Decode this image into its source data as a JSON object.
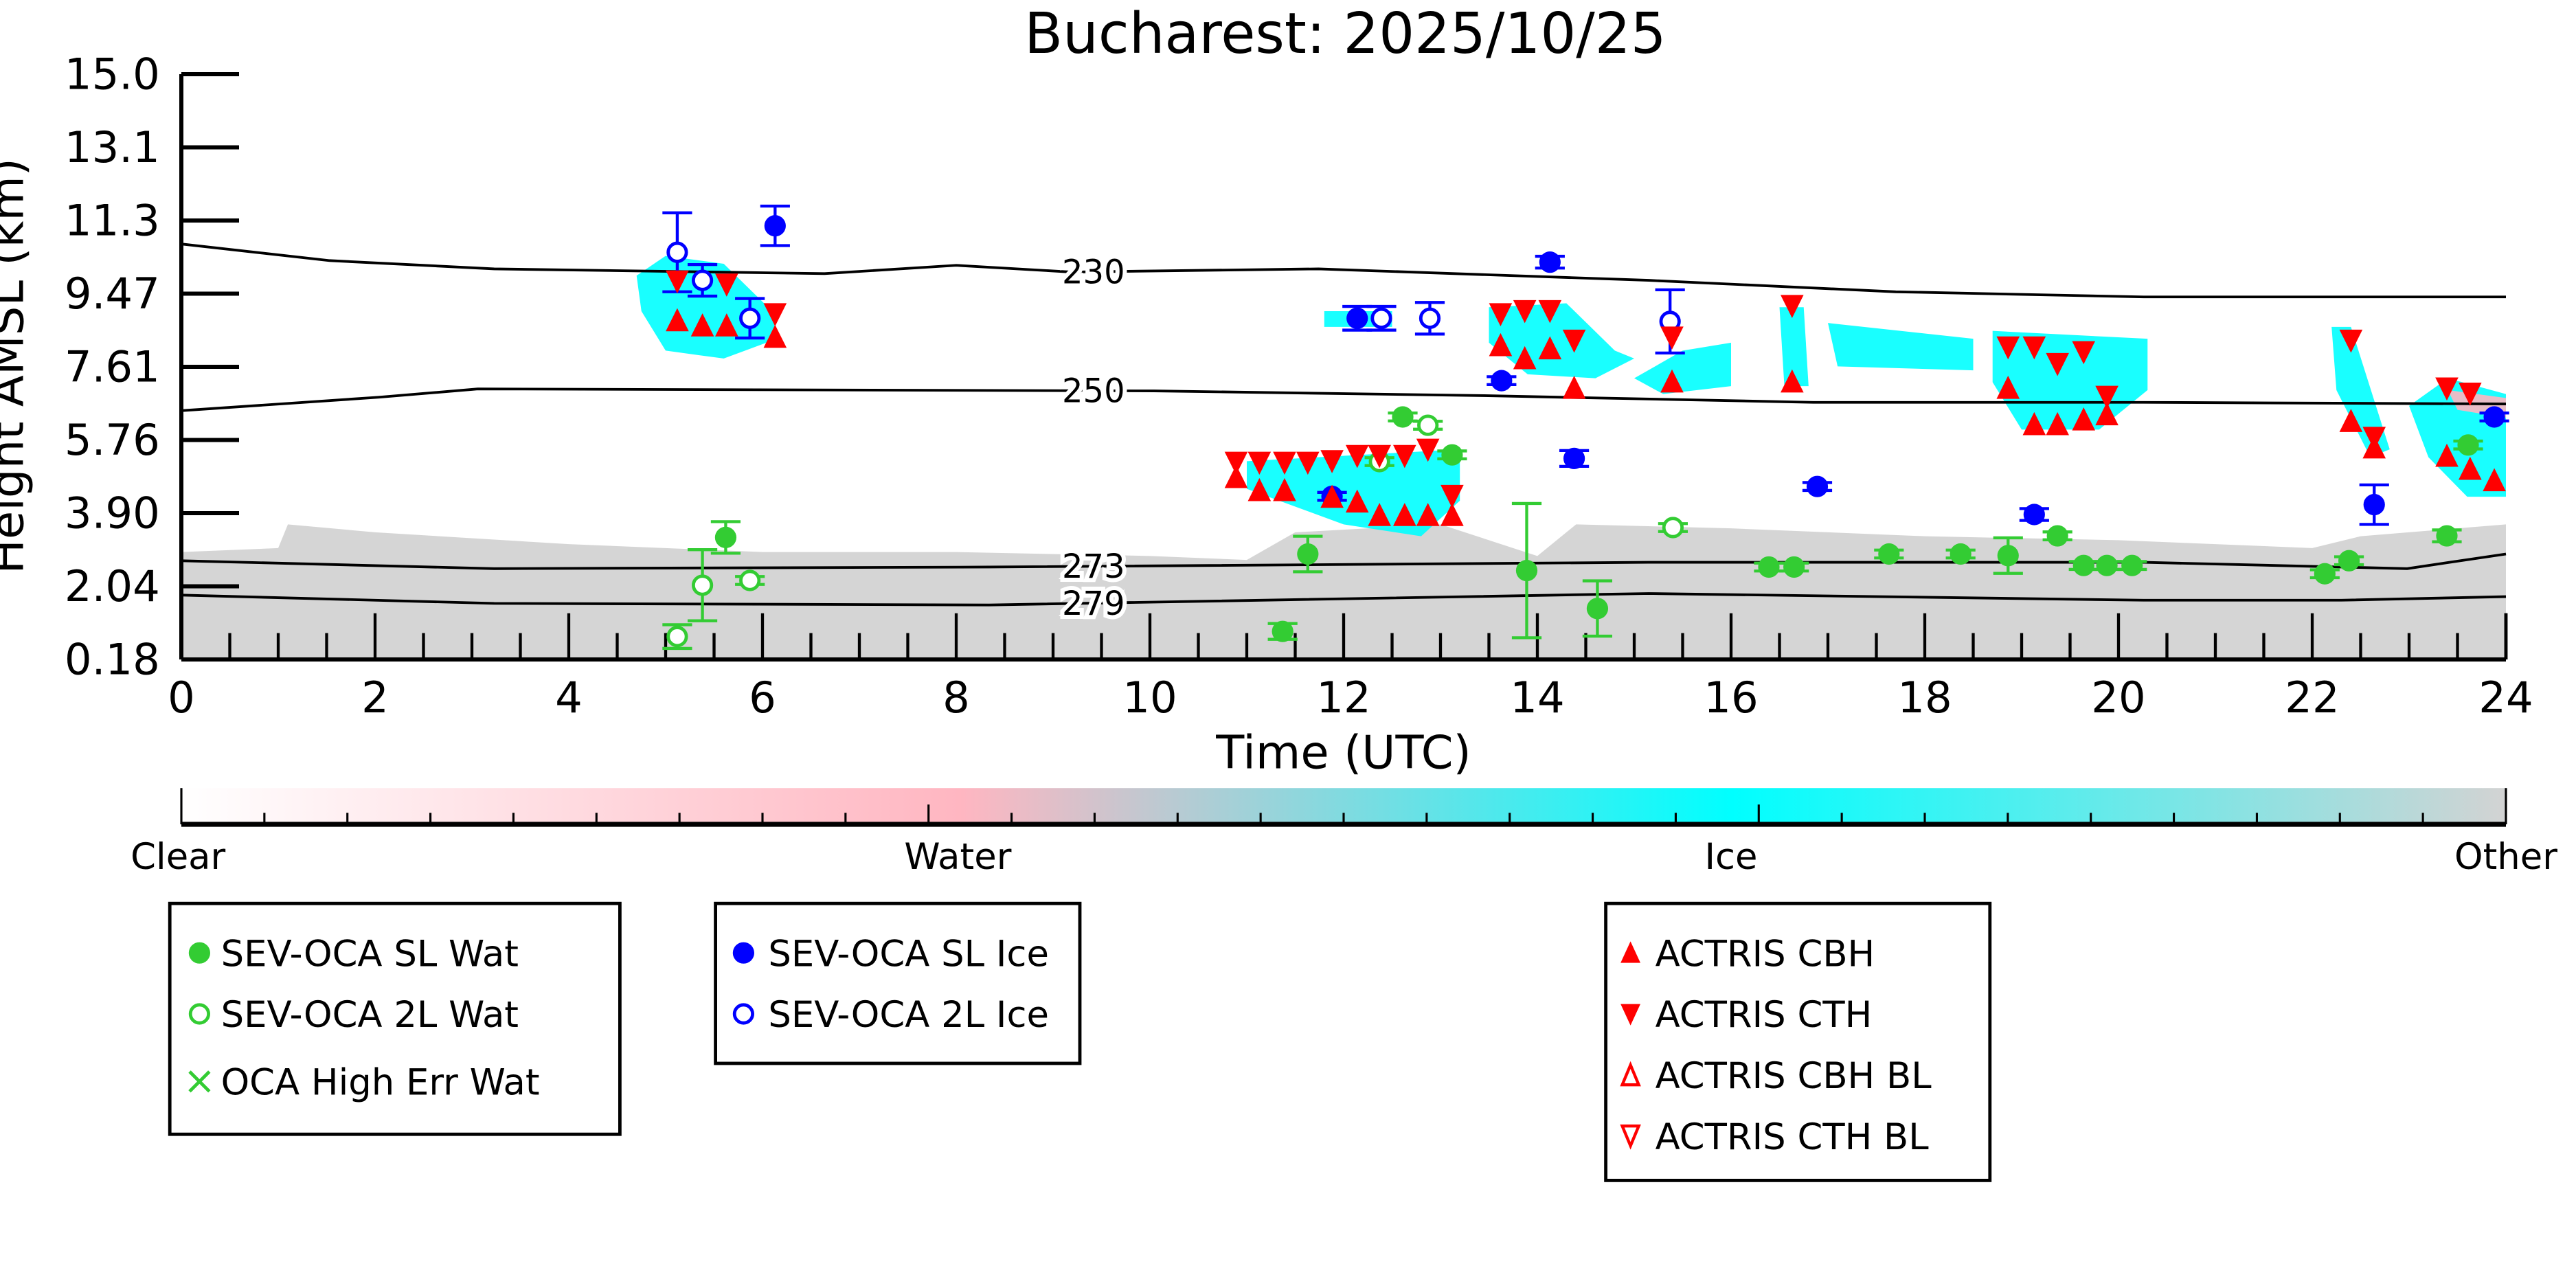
{
  "chart_data": {
    "type": "scatter",
    "title": "Bucharest: 2025/10/25",
    "xlabel": "Time (UTC)",
    "ylabel": "Height AMSL (km)",
    "xlim": [
      0,
      24
    ],
    "ylim": [
      0.18,
      15.0
    ],
    "x_ticks": [
      "0",
      "2",
      "4",
      "6",
      "8",
      "10",
      "12",
      "14",
      "16",
      "18",
      "20",
      "22",
      "24"
    ],
    "y_ticks": [
      "0.18",
      "2.04",
      "3.90",
      "5.76",
      "7.61",
      "9.47",
      "11.3",
      "13.1",
      "15.0"
    ],
    "grid": false,
    "colorbar": {
      "labels": [
        "Clear",
        "Water",
        "Ice",
        "Other"
      ],
      "colors": {
        "clear": "#ffffff",
        "water": "#ffb6c1",
        "ice": "#00ffff",
        "other": "#d3d3d3"
      }
    },
    "temperature_contours": [
      {
        "label": "230",
        "label_x": 9.4,
        "points": [
          [
            0,
            10.7
          ],
          [
            1.53,
            10.28
          ],
          [
            3.23,
            10.07
          ],
          [
            6.64,
            9.95
          ],
          [
            8,
            10.16
          ],
          [
            9.19,
            9.99
          ],
          [
            11.74,
            10.07
          ],
          [
            15.15,
            9.78
          ],
          [
            17.7,
            9.49
          ],
          [
            20.26,
            9.36
          ],
          [
            24,
            9.36
          ]
        ]
      },
      {
        "label": "250",
        "label_x": 9.4,
        "points": [
          [
            0,
            6.48
          ],
          [
            2.04,
            6.82
          ],
          [
            3.06,
            7.03
          ],
          [
            10.04,
            6.98
          ],
          [
            13.45,
            6.86
          ],
          [
            16.85,
            6.69
          ],
          [
            20.26,
            6.69
          ],
          [
            24,
            6.65
          ]
        ]
      },
      {
        "label": "273",
        "label_x": 9.4,
        "points": [
          [
            0,
            2.68
          ],
          [
            3.23,
            2.48
          ],
          [
            8.34,
            2.52
          ],
          [
            15.15,
            2.64
          ],
          [
            20.26,
            2.64
          ],
          [
            22.98,
            2.48
          ],
          [
            24,
            2.85
          ]
        ]
      },
      {
        "label": "279",
        "label_x": 9.4,
        "points": [
          [
            0,
            1.81
          ],
          [
            3.23,
            1.6
          ],
          [
            8.34,
            1.56
          ],
          [
            15.15,
            1.85
          ],
          [
            20.26,
            1.68
          ],
          [
            22.3,
            1.68
          ],
          [
            24,
            1.77
          ]
        ]
      }
    ],
    "cloud_regions": [
      {
        "class": "other",
        "points": [
          [
            0,
            0.18
          ],
          [
            0,
            2.9
          ],
          [
            1,
            3.0
          ],
          [
            1.1,
            3.6
          ],
          [
            2,
            3.4
          ],
          [
            4,
            3.1
          ],
          [
            6,
            2.9
          ],
          [
            8,
            2.9
          ],
          [
            10,
            2.8
          ],
          [
            11,
            2.7
          ],
          [
            11.5,
            3.4
          ],
          [
            13,
            3.6
          ],
          [
            14,
            2.8
          ],
          [
            14.4,
            3.6
          ],
          [
            16,
            3.5
          ],
          [
            18,
            3.3
          ],
          [
            20,
            3.2
          ],
          [
            22,
            3.0
          ],
          [
            22.5,
            3.3
          ],
          [
            24,
            3.6
          ],
          [
            24,
            0.18
          ]
        ]
      },
      {
        "class": "ice",
        "points": [
          [
            4.7,
            9.9
          ],
          [
            5.0,
            10.4
          ],
          [
            5.6,
            10.2
          ],
          [
            6.1,
            9.0
          ],
          [
            6.15,
            8.3
          ],
          [
            5.6,
            7.8
          ],
          [
            5.0,
            8.0
          ],
          [
            4.75,
            9.0
          ]
        ]
      },
      {
        "class": "ice",
        "points": [
          [
            11.0,
            5.2
          ],
          [
            13.2,
            5.5
          ],
          [
            13.2,
            4.2
          ],
          [
            12.8,
            3.3
          ],
          [
            12.0,
            3.6
          ],
          [
            11.0,
            4.5
          ]
        ]
      },
      {
        "class": "ice",
        "points": [
          [
            11.8,
            9.0
          ],
          [
            12.5,
            9.0
          ],
          [
            12.5,
            8.6
          ],
          [
            11.8,
            8.6
          ]
        ]
      },
      {
        "class": "ice",
        "points": [
          [
            13.5,
            9.1
          ],
          [
            14.3,
            9.2
          ],
          [
            14.8,
            8.0
          ],
          [
            15.0,
            7.8
          ],
          [
            14.6,
            7.3
          ],
          [
            13.9,
            7.4
          ],
          [
            13.5,
            8.2
          ]
        ]
      },
      {
        "class": "ice",
        "points": [
          [
            15.5,
            8.0
          ],
          [
            16.0,
            8.2
          ],
          [
            16.0,
            7.1
          ],
          [
            15.3,
            6.9
          ],
          [
            15.0,
            7.3
          ]
        ]
      },
      {
        "class": "ice",
        "points": [
          [
            16.5,
            9.1
          ],
          [
            16.75,
            9.1
          ],
          [
            16.8,
            7.1
          ],
          [
            16.55,
            7.1
          ]
        ]
      },
      {
        "class": "ice",
        "points": [
          [
            17.0,
            8.7
          ],
          [
            18.5,
            8.3
          ],
          [
            18.5,
            7.5
          ],
          [
            17.1,
            7.6
          ]
        ]
      },
      {
        "class": "ice",
        "points": [
          [
            18.7,
            8.5
          ],
          [
            20.3,
            8.3
          ],
          [
            20.3,
            7.0
          ],
          [
            19.8,
            6.0
          ],
          [
            19.0,
            6.0
          ],
          [
            18.7,
            7.2
          ]
        ]
      },
      {
        "class": "ice",
        "points": [
          [
            22.2,
            8.6
          ],
          [
            22.4,
            8.6
          ],
          [
            22.8,
            5.5
          ],
          [
            22.6,
            5.3
          ],
          [
            22.25,
            7.0
          ]
        ]
      },
      {
        "class": "ice",
        "points": [
          [
            23.0,
            6.6
          ],
          [
            23.4,
            7.3
          ],
          [
            24,
            6.9
          ],
          [
            24,
            4.3
          ],
          [
            23.6,
            4.3
          ],
          [
            23.2,
            5.3
          ]
        ]
      },
      {
        "class": "water",
        "points": [
          [
            23.4,
            7.0
          ],
          [
            24,
            6.8
          ],
          [
            24,
            6.3
          ],
          [
            23.5,
            6.5
          ]
        ]
      }
    ],
    "series": [
      {
        "name": "SEV-OCA SL Wat",
        "marker": "filled-circle",
        "color": "#33cc33",
        "points": [
          [
            5.62,
            3.27,
            0.4
          ],
          [
            11.63,
            2.85,
            0.45
          ],
          [
            11.37,
            0.89,
            0.2
          ],
          [
            12.61,
            6.32,
            0.1
          ],
          [
            13.12,
            5.36,
            0.1
          ],
          [
            13.89,
            2.43,
            1.7
          ],
          [
            14.62,
            1.47,
            0.7
          ],
          [
            16.39,
            2.52,
            0.1
          ],
          [
            16.65,
            2.52,
            0.1
          ],
          [
            17.63,
            2.85,
            0.1
          ],
          [
            18.37,
            2.85,
            0.1
          ],
          [
            18.86,
            2.81,
            0.45
          ],
          [
            19.37,
            3.31,
            0.1
          ],
          [
            19.64,
            2.56,
            0.1
          ],
          [
            19.88,
            2.56,
            0.1
          ],
          [
            20.14,
            2.56,
            0.1
          ],
          [
            22.13,
            2.35,
            0.1
          ],
          [
            22.38,
            2.68,
            0.1
          ],
          [
            23.39,
            3.31,
            0.15
          ],
          [
            23.61,
            5.61,
            0.1
          ]
        ]
      },
      {
        "name": "SEV-OCA 2L Wat",
        "marker": "open-circle",
        "color": "#33cc33",
        "points": [
          [
            5.12,
            0.76,
            0.3
          ],
          [
            5.38,
            2.06,
            0.9
          ],
          [
            5.87,
            2.18,
            0.1
          ],
          [
            12.37,
            5.19,
            0.1
          ],
          [
            12.87,
            6.11,
            0.1
          ],
          [
            15.4,
            3.52,
            0.1
          ]
        ]
      },
      {
        "name": "OCA High Err Wat",
        "marker": "x",
        "color": "#33cc33",
        "points": []
      },
      {
        "name": "SEV-OCA SL Ice",
        "marker": "filled-circle",
        "color": "#0000ff",
        "points": [
          [
            6.13,
            11.16,
            0.5
          ],
          [
            12.14,
            8.82,
            0.3
          ],
          [
            11.88,
            4.31,
            0.1
          ],
          [
            14.13,
            10.24,
            0.15
          ],
          [
            13.63,
            7.24,
            0.1
          ],
          [
            14.38,
            5.27,
            0.2
          ],
          [
            16.89,
            4.56,
            0.1
          ],
          [
            19.13,
            3.85,
            0.15
          ],
          [
            22.64,
            4.1,
            0.5
          ],
          [
            23.88,
            6.32,
            0.1
          ]
        ]
      },
      {
        "name": "SEV-OCA 2L Ice",
        "marker": "open-circle",
        "color": "#0000ff",
        "points": [
          [
            5.12,
            10.49,
            1.0
          ],
          [
            5.38,
            9.78,
            0.4
          ],
          [
            5.87,
            8.82,
            0.5
          ],
          [
            12.39,
            8.82,
            0.3
          ],
          [
            12.89,
            8.82,
            0.4
          ],
          [
            15.37,
            8.74,
            0.8
          ]
        ]
      },
      {
        "name": "ACTRIS CBH",
        "marker": "triangle-up",
        "color": "#ff0000",
        "points": [
          [
            5.12,
            8.74
          ],
          [
            5.38,
            8.61
          ],
          [
            5.63,
            8.61
          ],
          [
            6.13,
            8.32
          ],
          [
            10.89,
            4.77
          ],
          [
            11.13,
            4.44
          ],
          [
            11.39,
            4.44
          ],
          [
            11.88,
            4.27
          ],
          [
            12.14,
            4.15
          ],
          [
            12.37,
            3.81
          ],
          [
            12.63,
            3.81
          ],
          [
            12.87,
            3.81
          ],
          [
            13.12,
            3.81
          ],
          [
            13.62,
            8.11
          ],
          [
            13.87,
            7.78
          ],
          [
            14.13,
            8.03
          ],
          [
            14.38,
            7.03
          ],
          [
            15.39,
            7.19
          ],
          [
            16.63,
            7.19
          ],
          [
            18.86,
            7.03
          ],
          [
            19.13,
            6.11
          ],
          [
            19.37,
            6.11
          ],
          [
            19.64,
            6.23
          ],
          [
            19.88,
            6.36
          ],
          [
            22.4,
            6.19
          ],
          [
            22.64,
            5.52
          ],
          [
            23.39,
            5.31
          ],
          [
            23.63,
            4.98
          ],
          [
            23.88,
            4.69
          ]
        ]
      },
      {
        "name": "ACTRIS CTH",
        "marker": "triangle-down",
        "color": "#ff0000",
        "points": [
          [
            5.12,
            9.78
          ],
          [
            5.63,
            9.7
          ],
          [
            6.13,
            8.95
          ],
          [
            10.89,
            5.19
          ],
          [
            11.13,
            5.19
          ],
          [
            11.39,
            5.19
          ],
          [
            11.63,
            5.19
          ],
          [
            11.88,
            5.23
          ],
          [
            12.14,
            5.36
          ],
          [
            12.37,
            5.36
          ],
          [
            12.63,
            5.36
          ],
          [
            12.87,
            5.52
          ],
          [
            13.12,
            4.35
          ],
          [
            13.62,
            8.95
          ],
          [
            13.87,
            9.03
          ],
          [
            14.13,
            9.03
          ],
          [
            14.38,
            8.28
          ],
          [
            15.39,
            8.36
          ],
          [
            16.63,
            9.16
          ],
          [
            18.86,
            8.11
          ],
          [
            19.13,
            8.11
          ],
          [
            19.37,
            7.69
          ],
          [
            19.64,
            7.99
          ],
          [
            19.88,
            6.86
          ],
          [
            22.4,
            8.28
          ],
          [
            22.64,
            5.82
          ],
          [
            23.39,
            7.07
          ],
          [
            23.63,
            6.94
          ]
        ]
      },
      {
        "name": "ACTRIS CBH BL",
        "marker": "open-triangle-up",
        "color": "#ff0000",
        "points": []
      },
      {
        "name": "ACTRIS CTH BL",
        "marker": "open-triangle-down",
        "color": "#ff0000",
        "points": []
      }
    ]
  }
}
